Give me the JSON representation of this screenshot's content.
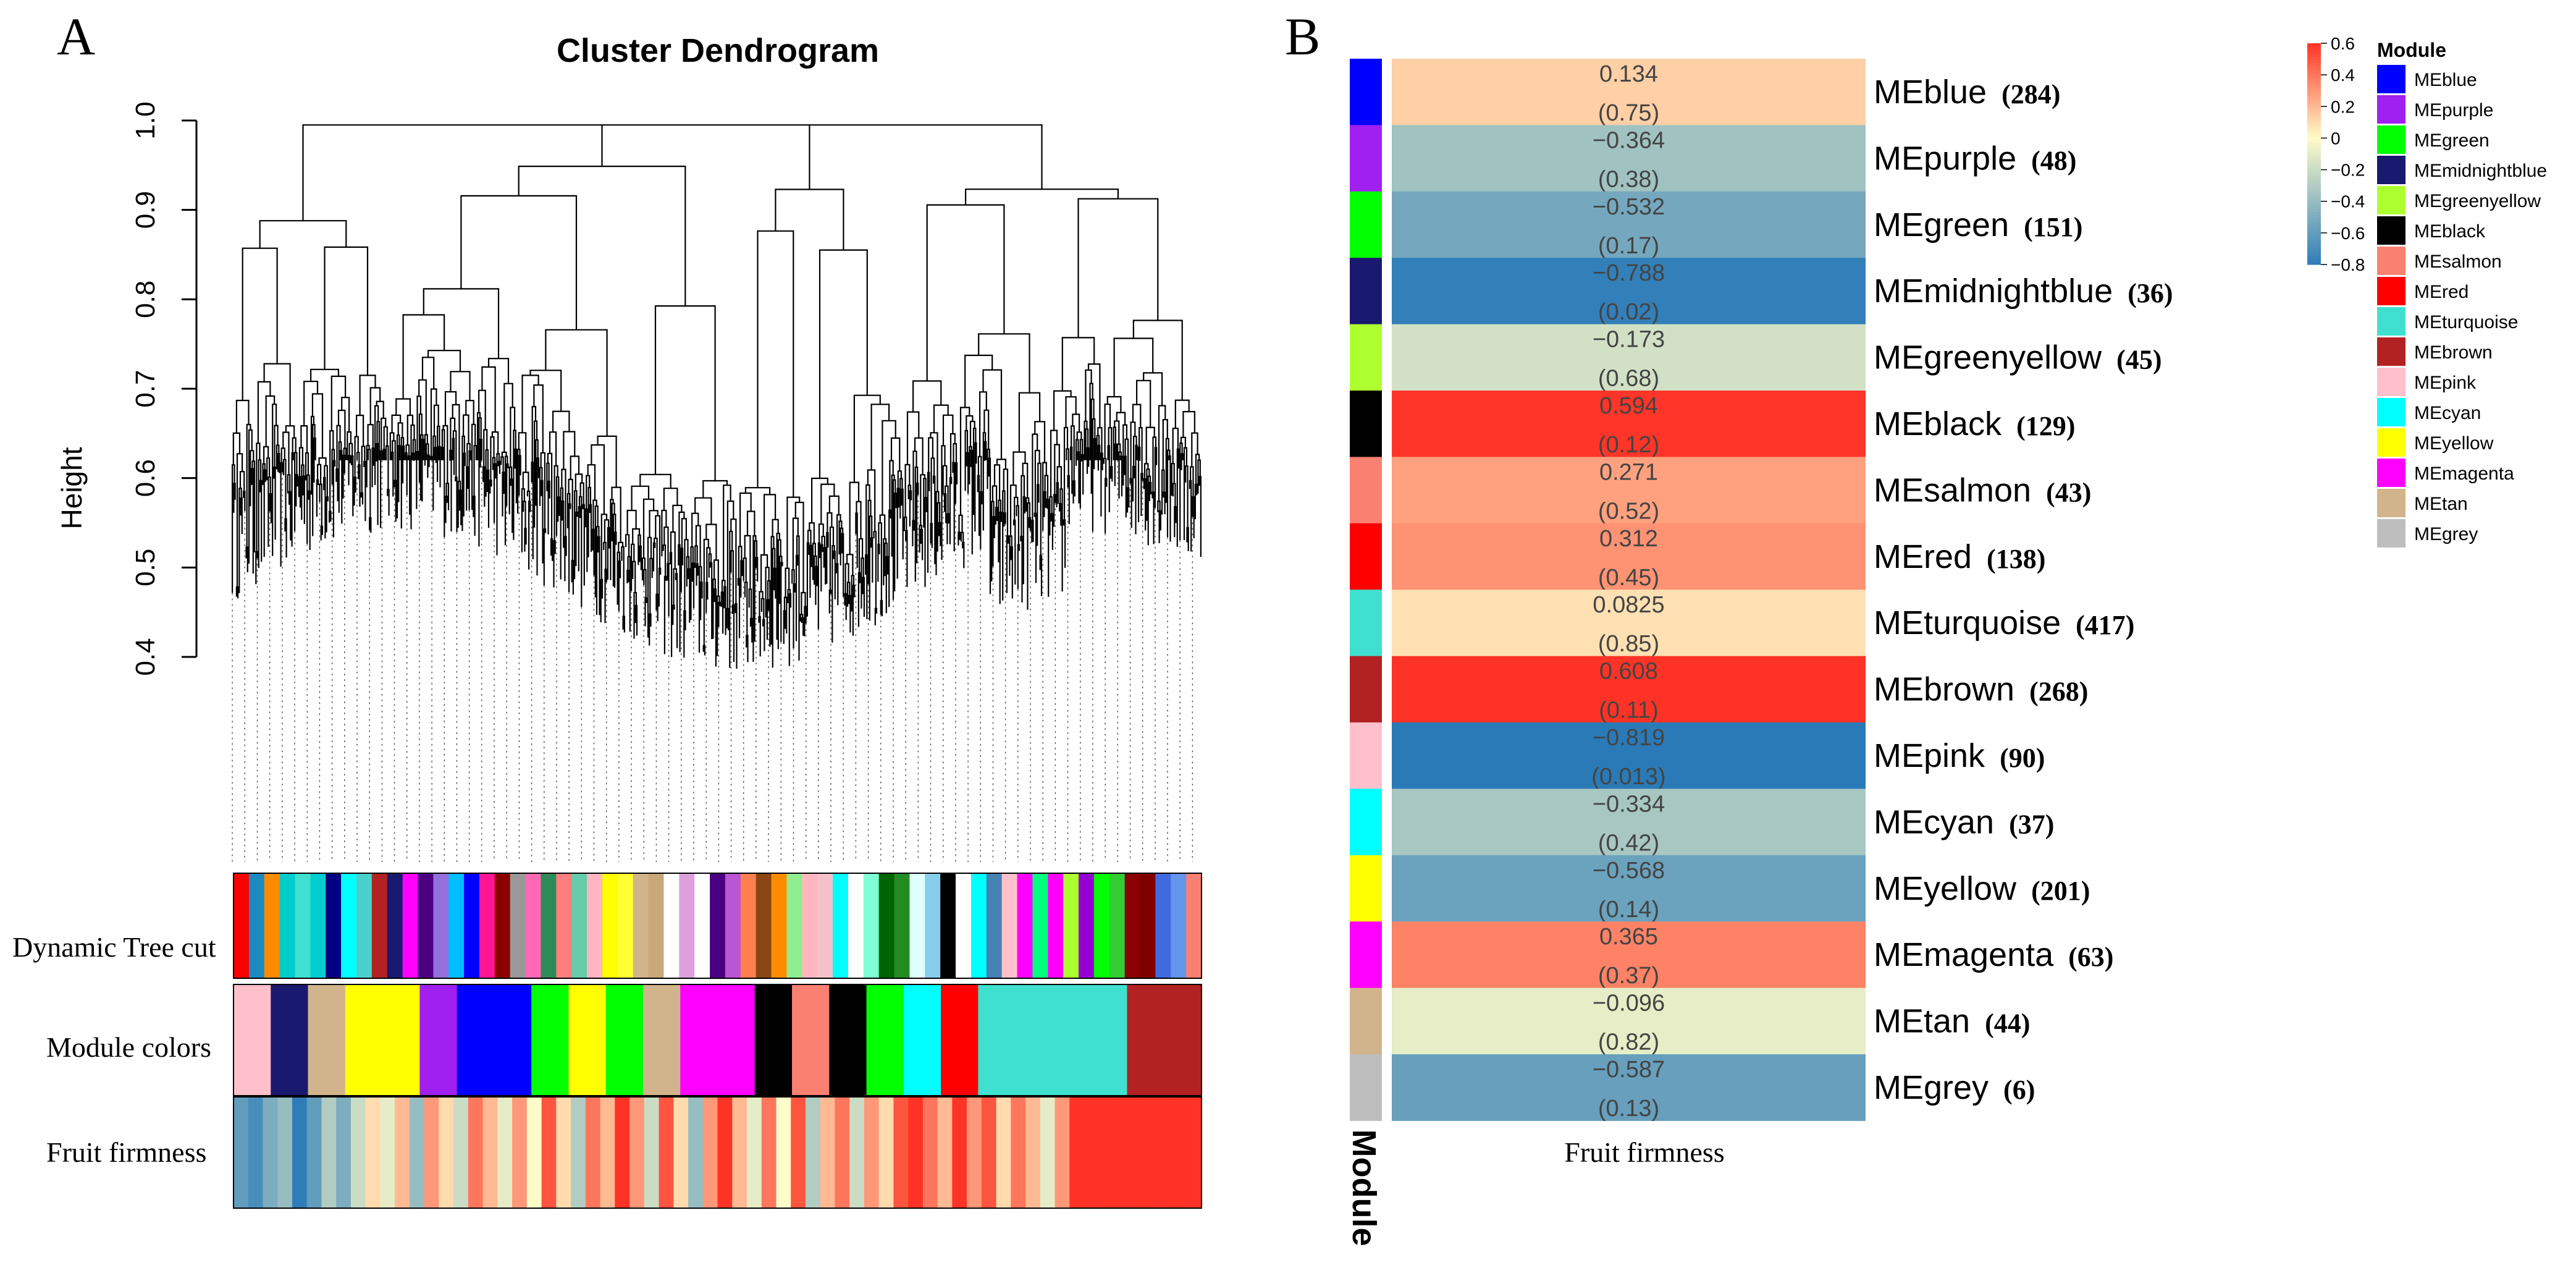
{
  "panel_a": {
    "label": "A",
    "title": "Cluster Dendrogram",
    "ylabel": "Height",
    "row_labels": [
      "Dynamic Tree cut",
      "Module colors",
      "Fruit firmness"
    ]
  },
  "panel_b": {
    "label": "B",
    "xlabel": "Fruit firmness",
    "module_axis_label": "Module"
  },
  "legend": {
    "title": "Module",
    "colorbar_ticks": [
      "0.6",
      "0.4",
      "0.2",
      "0",
      "−0.2",
      "−0.4",
      "−0.6",
      "−0.8"
    ]
  },
  "colors": {
    "dendrogram": "#000000",
    "negative": "#2a7ab8",
    "neutral": "#fffcc9",
    "positive": "#fe3326"
  },
  "chart_data": [
    {
      "type": "dendrogram",
      "title": "Cluster Dendrogram",
      "ylabel": "Height",
      "ylim": [
        0.4,
        1.0
      ],
      "yticks": [
        "0.4",
        "0.5",
        "0.6",
        "0.7",
        "0.8",
        "0.9",
        "1.0"
      ],
      "color_bars": [
        "Dynamic Tree cut",
        "Module colors",
        "Fruit firmness"
      ],
      "dynamic_tree_cut": [
        "#ff0000",
        "#1a8ac0",
        "#ff8c00",
        "#00cccc",
        "#40e0d0",
        "#00ced1",
        "#000080",
        "#00ffff",
        "#48d1cc",
        "#b22222",
        "#191970",
        "#ff00ff",
        "#4b0082",
        "#9370db",
        "#00bfff",
        "#0000ff",
        "#ff1493",
        "#8b0000",
        "#999999",
        "#ff69b4",
        "#2e8b57",
        "#ff7f7f",
        "#66cdaa",
        "#ffb6c1",
        "#ffff00",
        "#ffff33",
        "#d2b48c",
        "#c8a878",
        "#ffffff",
        "#dda0dd",
        "#ffffff",
        "#4b0082",
        "#ba55d3",
        "#ff7f50",
        "#8b4513",
        "#ff8c00",
        "#90ee90",
        "#ffb6c1",
        "#f5c0cb",
        "#00ffff",
        "#ffffff",
        "#7fffd4",
        "#006400",
        "#228b22",
        "#e0ffff",
        "#87ceeb",
        "#000000",
        "#ffffff",
        "#00ffff",
        "#4682b4",
        "#ffc0cb",
        "#ff00ff",
        "#00ff7f",
        "#ff00ff",
        "#adff2f",
        "#9400d3",
        "#00ff00",
        "#32cd32",
        "#8b0000",
        "#800000",
        "#4169e1",
        "#6495ed",
        "#fa8072"
      ],
      "module_colors": [
        "#ffc0cb",
        "#191970",
        "#d2b48c",
        "#ffff00",
        "#ffff00",
        "#a020f0",
        "#0000ff",
        "#0000ff",
        "#00ff00",
        "#ffff00",
        "#00ff00",
        "#d2b48c",
        "#ff00ff",
        "#ff00ff",
        "#000000",
        "#fa8072",
        "#000000",
        "#00ff00",
        "#00ffff",
        "#ff0000",
        "#40e0d0",
        "#40e0d0",
        "#40e0d0",
        "#40e0d0",
        "#b22222",
        "#b22222"
      ],
      "fruit_firmness": [
        -0.6,
        -0.7,
        -0.5,
        -0.4,
        -0.8,
        -0.6,
        -0.3,
        -0.5,
        -0.2,
        0.1,
        -0.1,
        0.2,
        -0.4,
        0.3,
        0.1,
        -0.2,
        0.4,
        0.2,
        -0.1,
        0.3,
        0.0,
        0.5,
        0.1,
        -0.3,
        0.4,
        0.2,
        0.6,
        0.3,
        -0.2,
        0.5,
        0.1,
        -0.4,
        0.3,
        0.6,
        0.2,
        -0.1,
        0.4,
        0.0,
        0.5,
        -0.3,
        0.2,
        0.4,
        -0.2,
        0.3,
        0.1,
        0.5,
        0.7,
        0.4,
        0.2,
        0.6,
        0.3,
        0.5,
        0.1,
        0.4,
        0.2,
        -0.1,
        0.3,
        0.6,
        0.8,
        0.7,
        0.6,
        0.8,
        0.7,
        0.6,
        0.8,
        0.7
      ]
    },
    {
      "type": "heatmap",
      "xlabel": "Fruit firmness",
      "ylabel": "Module",
      "colorbar_range": [
        -0.8,
        0.6
      ],
      "rows": [
        {
          "module": "MEblue",
          "count": "(284)",
          "color": "#0000ff",
          "value": 0.134,
          "value_label": "0.134",
          "p_label": "(0.75)"
        },
        {
          "module": "MEpurple",
          "count": "(48)",
          "color": "#a020f0",
          "value": -0.364,
          "value_label": "−0.364",
          "p_label": "(0.38)"
        },
        {
          "module": "MEgreen",
          "count": "(151)",
          "color": "#00ff00",
          "value": -0.532,
          "value_label": "−0.532",
          "p_label": "(0.17)"
        },
        {
          "module": "MEmidnightblue",
          "count": "(36)",
          "color": "#191970",
          "value": -0.788,
          "value_label": "−0.788",
          "p_label": "(0.02)"
        },
        {
          "module": "MEgreenyellow",
          "count": "(45)",
          "color": "#adff2f",
          "value": -0.173,
          "value_label": "−0.173",
          "p_label": "(0.68)"
        },
        {
          "module": "MEblack",
          "count": "(129)",
          "color": "#000000",
          "value": 0.594,
          "value_label": "0.594",
          "p_label": "(0.12)"
        },
        {
          "module": "MEsalmon",
          "count": "(43)",
          "color": "#fa8072",
          "value": 0.271,
          "value_label": "0.271",
          "p_label": "(0.52)"
        },
        {
          "module": "MEred",
          "count": "(138)",
          "color": "#ff0000",
          "value": 0.312,
          "value_label": "0.312",
          "p_label": "(0.45)"
        },
        {
          "module": "MEturquoise",
          "count": "(417)",
          "color": "#40e0d0",
          "value": 0.0825,
          "value_label": "0.0825",
          "p_label": "(0.85)"
        },
        {
          "module": "MEbrown",
          "count": "(268)",
          "color": "#b22222",
          "value": 0.608,
          "value_label": "0.608",
          "p_label": "(0.11)"
        },
        {
          "module": "MEpink",
          "count": "(90)",
          "color": "#ffc0cb",
          "value": -0.819,
          "value_label": "−0.819",
          "p_label": "(0.013)"
        },
        {
          "module": "MEcyan",
          "count": "(37)",
          "color": "#00ffff",
          "value": -0.334,
          "value_label": "−0.334",
          "p_label": "(0.42)"
        },
        {
          "module": "MEyellow",
          "count": "(201)",
          "color": "#ffff00",
          "value": -0.568,
          "value_label": "−0.568",
          "p_label": "(0.14)"
        },
        {
          "module": "MEmagenta",
          "count": "(63)",
          "color": "#ff00ff",
          "value": 0.365,
          "value_label": "0.365",
          "p_label": "(0.37)"
        },
        {
          "module": "MEtan",
          "count": "(44)",
          "color": "#d2b48c",
          "value": -0.096,
          "value_label": "−0.096",
          "p_label": "(0.82)"
        },
        {
          "module": "MEgrey",
          "count": "(6)",
          "color": "#bebebe",
          "value": -0.587,
          "value_label": "−0.587",
          "p_label": "(0.13)"
        }
      ]
    }
  ]
}
